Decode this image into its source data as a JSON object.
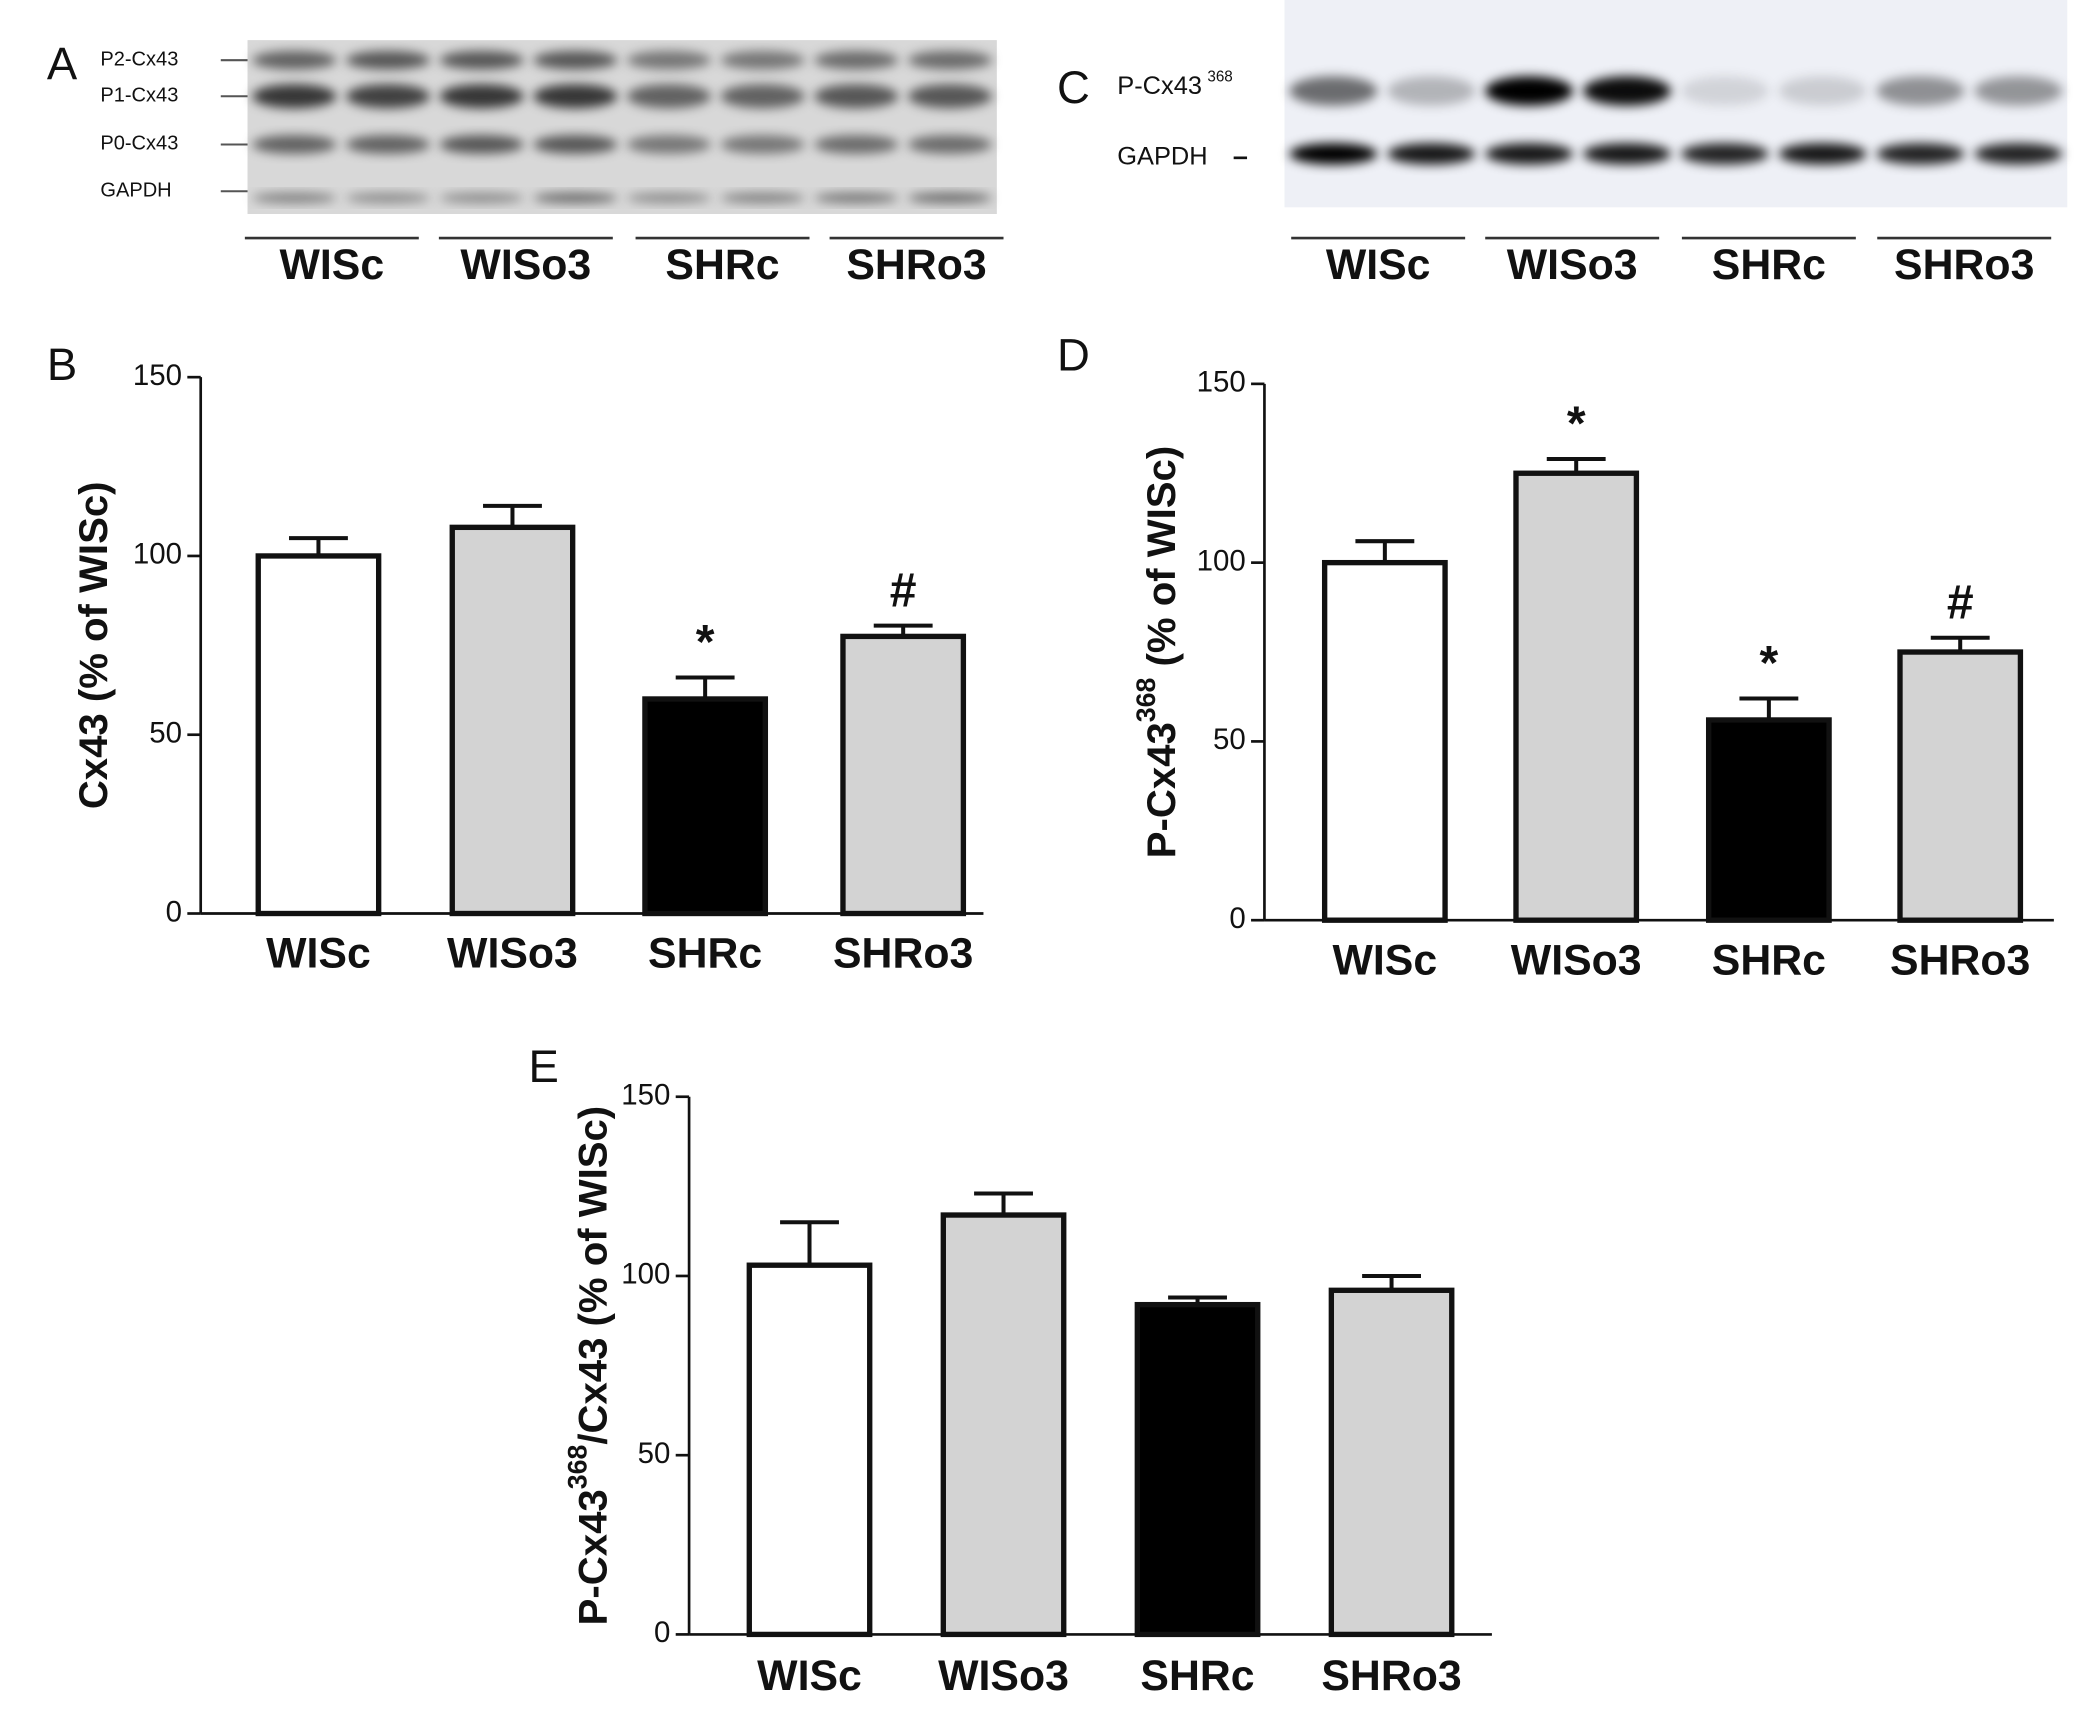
{
  "blots": [
    {
      "panel": "A",
      "band_labels": [
        "P2-Cx43",
        "P1-Cx43",
        "P0-Cx43",
        "GAPDH"
      ],
      "groups": [
        "WISc",
        "WISo3",
        "SHRc",
        "SHRo3"
      ]
    },
    {
      "panel": "C",
      "band_labels": [
        [
          "P-Cx43",
          "368"
        ],
        "GAPDH"
      ],
      "groups": [
        "WISc",
        "WISo3",
        "SHRc",
        "SHRo3"
      ]
    }
  ],
  "chart_data": [
    {
      "type": "bar",
      "panel": "B",
      "ylabel": "Cx43 (% of WISc)",
      "categories": [
        "WISc",
        "WISo3",
        "SHRc",
        "SHRo3"
      ],
      "values": [
        100,
        108,
        60,
        77.5
      ],
      "errors": [
        5,
        6,
        6,
        3
      ],
      "colors": [
        "#ffffff",
        "#d3d3d3",
        "#000000",
        "#d3d3d3"
      ],
      "markers": [
        null,
        null,
        "*",
        "#"
      ],
      "ylim": [
        0,
        150
      ],
      "yticks": [
        0,
        50,
        100,
        150
      ]
    },
    {
      "type": "bar",
      "panel": "D",
      "ylabel": [
        "P-Cx43",
        "368",
        " (% of WISc)"
      ],
      "categories": [
        "WISc",
        "WISo3",
        "SHRc",
        "SHRo3"
      ],
      "values": [
        100,
        125,
        56,
        75
      ],
      "errors": [
        6,
        4,
        6,
        4
      ],
      "colors": [
        "#ffffff",
        "#d3d3d3",
        "#000000",
        "#d3d3d3"
      ],
      "markers": [
        null,
        "*",
        "*",
        "#"
      ],
      "ylim": [
        0,
        150
      ],
      "yticks": [
        0,
        50,
        100,
        150
      ]
    },
    {
      "type": "bar",
      "panel": "E",
      "ylabel": [
        "P-Cx43",
        "368",
        "/Cx43 (% of WISc)"
      ],
      "categories": [
        "WISc",
        "WISo3",
        "SHRc",
        "SHRo3"
      ],
      "values": [
        103,
        117,
        92,
        96
      ],
      "errors": [
        12,
        6,
        2,
        4
      ],
      "colors": [
        "#ffffff",
        "#d3d3d3",
        "#000000",
        "#d3d3d3"
      ],
      "markers": [
        null,
        null,
        null,
        null
      ],
      "ylim": [
        0,
        150
      ],
      "yticks": [
        0,
        50,
        100,
        150
      ]
    }
  ]
}
